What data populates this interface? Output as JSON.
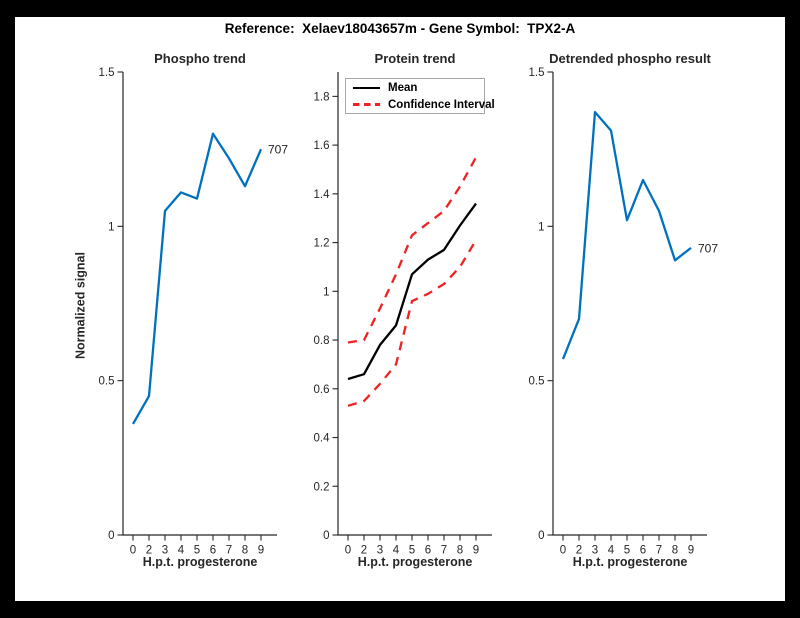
{
  "figure_title": "Reference:  Xelaev18043657m - Gene Symbol:  TPX2-A",
  "colors": {
    "blue": "#0072bd",
    "red": "#ee2222",
    "black": "#000000",
    "axis": "#262626",
    "frame": "#000000",
    "background": "#ffffff",
    "legend_border": "#a6a6a6"
  },
  "legend_labels": {
    "mean": "Mean",
    "ci": "Confidence Interval"
  },
  "chart_data": [
    {
      "type": "line",
      "title": "Phospho trend",
      "xlabel": "H.p.t. progesterone",
      "ylabel": "Normalized signal",
      "categories": [
        "0",
        "2",
        "3",
        "4",
        "5",
        "6",
        "7",
        "8",
        "9"
      ],
      "series": [
        {
          "name": "phospho-signal",
          "color_key": "blue",
          "style": "solid",
          "values": [
            0.36,
            0.45,
            1.05,
            1.11,
            1.09,
            1.3,
            1.22,
            1.13,
            1.25
          ]
        }
      ],
      "ylim": [
        0,
        1.5
      ],
      "yticks": [
        0,
        0.5,
        1,
        1.5
      ],
      "ytick_labels": [
        "0",
        "0.5",
        "1",
        "1.5"
      ],
      "grid": false,
      "end_label": "707"
    },
    {
      "type": "line",
      "title": "Protein trend",
      "xlabel": "H.p.t. progesterone",
      "ylabel": "",
      "categories": [
        "0",
        "2",
        "3",
        "4",
        "5",
        "6",
        "7",
        "8",
        "9"
      ],
      "series": [
        {
          "name": "mean",
          "color_key": "black",
          "style": "solid",
          "values": [
            0.64,
            0.66,
            0.78,
            0.86,
            1.07,
            1.13,
            1.17,
            1.27,
            1.36
          ]
        },
        {
          "name": "confidence-interval-upper",
          "color_key": "red",
          "style": "dashed",
          "values": [
            0.79,
            0.8,
            0.93,
            1.07,
            1.23,
            1.28,
            1.33,
            1.43,
            1.55
          ]
        },
        {
          "name": "confidence-interval-lower",
          "color_key": "red",
          "style": "dashed",
          "values": [
            0.53,
            0.55,
            0.62,
            0.7,
            0.96,
            0.99,
            1.03,
            1.1,
            1.21
          ]
        }
      ],
      "ylim": [
        0,
        1.9
      ],
      "yticks": [
        0,
        0.2,
        0.4,
        0.6,
        0.8,
        1,
        1.2,
        1.4,
        1.6,
        1.8
      ],
      "ytick_labels": [
        "0",
        "0.2",
        "0.4",
        "0.6",
        "0.8",
        "1",
        "1.2",
        "1.4",
        "1.6",
        "1.8"
      ],
      "grid": false,
      "legend_position": "northwest",
      "end_label": ""
    },
    {
      "type": "line",
      "title": "Detrended phospho result",
      "xlabel": "H.p.t. progesterone",
      "ylabel": "",
      "categories": [
        "0",
        "2",
        "3",
        "4",
        "5",
        "6",
        "7",
        "8",
        "9"
      ],
      "series": [
        {
          "name": "detrended-phospho",
          "color_key": "blue",
          "style": "solid",
          "values": [
            0.57,
            0.7,
            1.37,
            1.31,
            1.02,
            1.15,
            1.05,
            0.89,
            0.93
          ]
        }
      ],
      "ylim": [
        0,
        1.5
      ],
      "yticks": [
        0,
        0.5,
        1,
        1.5
      ],
      "ytick_labels": [
        "0",
        "0.5",
        "1",
        "1.5"
      ],
      "grid": false,
      "end_label": "707"
    }
  ]
}
